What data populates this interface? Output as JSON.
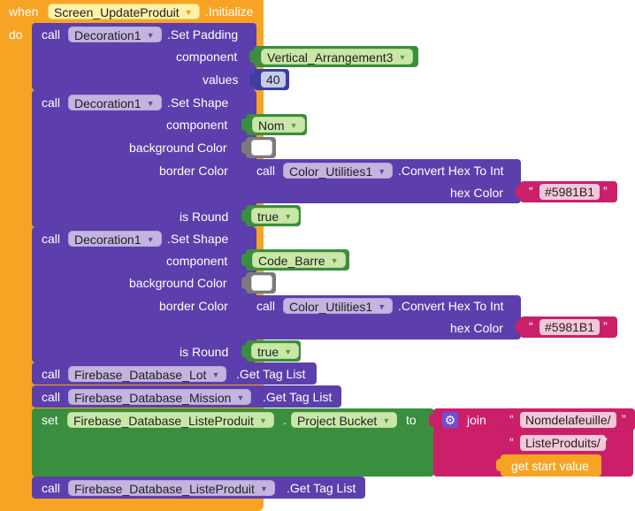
{
  "colors": {
    "event": "#f7a425",
    "component": "#5c3fac",
    "green": "#3a8e3f",
    "text": "#cc1f6a",
    "math": "#3c3fa0",
    "cog": "#6f4fd6"
  },
  "event": {
    "when": "when",
    "component": "Screen_UpdateProduit",
    "event": ".Initialize",
    "do": "do"
  },
  "blocks": [
    {
      "call": "call",
      "component": "Decoration1",
      "method": ".Set Padding",
      "params": [
        {
          "label": "component",
          "value": "Vertical_Arrangement3"
        },
        {
          "label": "values",
          "value": "40"
        }
      ]
    },
    {
      "call": "call",
      "component": "Decoration1",
      "method": ".Set Shape",
      "params": [
        {
          "label": "component",
          "value": "Nom"
        },
        {
          "label": "background Color"
        },
        {
          "label": "border Color",
          "call": "call",
          "component": "Color_Utilities1",
          "method": ".Convert Hex To Int",
          "sublabel": "hex Color",
          "value": "#5981B1"
        },
        {
          "label": "is Round",
          "value": "true"
        }
      ]
    },
    {
      "call": "call",
      "component": "Decoration1",
      "method": ".Set Shape",
      "params": [
        {
          "label": "component",
          "value": "Code_Barre"
        },
        {
          "label": "background Color"
        },
        {
          "label": "border Color",
          "call": "call",
          "component": "Color_Utilities1",
          "method": ".Convert Hex To Int",
          "sublabel": "hex Color",
          "value": "#5981B1"
        },
        {
          "label": "is Round",
          "value": "true"
        }
      ]
    },
    {
      "call": "call",
      "component": "Firebase_Database_Lot",
      "method": ".Get Tag List"
    },
    {
      "call": "call",
      "component": "Firebase_Database_Mission",
      "method": ".Get Tag List"
    },
    {
      "set": "set",
      "component": "Firebase_Database_ListeProduit",
      "dot": ".",
      "property": "Project Bucket",
      "to": "to",
      "join": "join",
      "items": [
        "Nomdelafeuille/",
        "ListeProduits/"
      ],
      "start_value": "get start value"
    },
    {
      "call": "call",
      "component": "Firebase_Database_ListeProduit",
      "method": ".Get Tag List"
    }
  ],
  "quote_open": "“",
  "quote_close": "”"
}
